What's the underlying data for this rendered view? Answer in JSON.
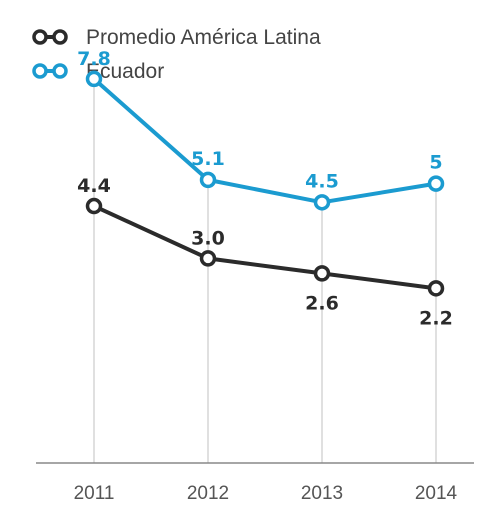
{
  "colors": {
    "latam": "#2b2b2b",
    "ecuador": "#1b9bd0",
    "axis": "#888888",
    "gridline": "#cfcfcf"
  },
  "legend": [
    {
      "label": "Promedio América Latina",
      "color": "#2b2b2b"
    },
    {
      "label": "Ecuador",
      "color": "#1b9bd0"
    }
  ],
  "chart_data": {
    "type": "line",
    "categories": [
      "2011",
      "2012",
      "2013",
      "2014"
    ],
    "series": [
      {
        "name": "Promedio América Latina",
        "values": [
          4.4,
          3.0,
          2.6,
          2.2
        ],
        "labels": [
          "4.4",
          "3.0",
          "2.6",
          "2.2"
        ],
        "color": "#2b2b2b"
      },
      {
        "name": "Ecuador",
        "values": [
          7.8,
          5.1,
          4.5,
          5.0
        ],
        "labels": [
          "7.8",
          "5.1",
          "4.5",
          "5"
        ],
        "color": "#1b9bd0"
      }
    ],
    "title": "",
    "xlabel": "",
    "ylabel": "",
    "ylim": [
      -2.47,
      8.84
    ],
    "grid": "vertical drop lines at each category",
    "legend_position": "top-left"
  }
}
